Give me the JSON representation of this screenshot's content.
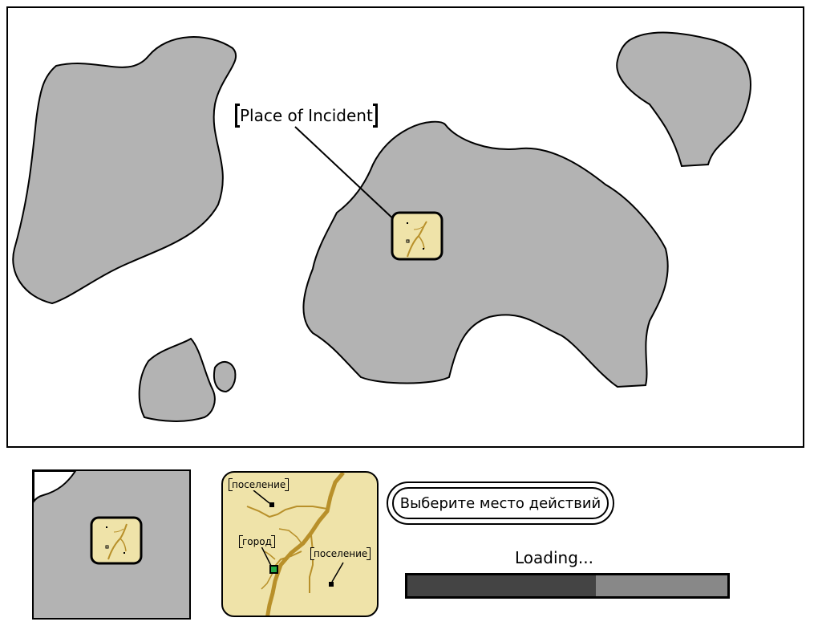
{
  "world_map": {
    "place_label": "Place of Incident"
  },
  "detail_map": {
    "labels": {
      "settlement_top": "поселение",
      "city": "город",
      "settlement_right": "поселение"
    }
  },
  "choose_button": {
    "label": "Выберите место действий"
  },
  "loading": {
    "text": "Loading...",
    "progress": 0.59
  },
  "colors": {
    "land": "#b3b3b3",
    "parchment": "#efe3a9",
    "road": "#b8902a",
    "city_marker": "#22aa44",
    "progress_fill": "#444444",
    "progress_track": "#888888"
  }
}
